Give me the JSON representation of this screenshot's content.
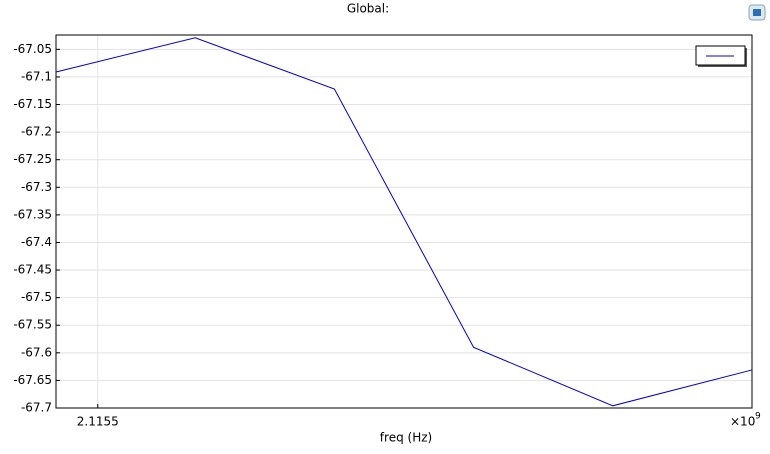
{
  "chart_data": {
    "type": "line",
    "title": "Global:",
    "xlabel": "freq (Hz)",
    "x_scale_label": "×10",
    "x_scale_exponent": "9",
    "x": [
      2.11547,
      2.11557,
      2.11567,
      2.11577,
      2.11587,
      2.11597
    ],
    "series": [
      {
        "color": "#0000cc",
        "values": [
          -67.091,
          -67.029,
          -67.122,
          -67.59,
          -67.696,
          -67.631
        ]
      }
    ],
    "xlim": [
      2.11547,
      2.11597
    ],
    "xticks": [
      2.1155
    ],
    "ylim": [
      -67.7,
      -67.024
    ],
    "yticks": [
      -67.7,
      -67.65,
      -67.6,
      -67.55,
      -67.5,
      -67.45,
      -67.4,
      -67.35,
      -67.3,
      -67.25,
      -67.2,
      -67.15,
      -67.1,
      -67.05
    ],
    "grid": true,
    "legend": "upper right"
  }
}
